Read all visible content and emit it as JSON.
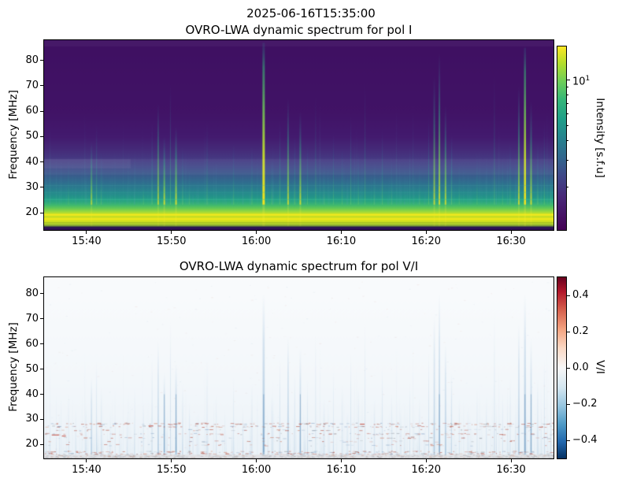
{
  "figure": {
    "suptitle": "2025-06-16T15:35:00",
    "background": "#ffffff"
  },
  "chart_data": [
    {
      "type": "heatmap",
      "title": "OVRO-LWA dynamic spectrum for pol I",
      "ylabel": "Frequency [MHz]",
      "x_range": [
        "15:35",
        "16:35"
      ],
      "x_ticks": [
        "15:40",
        "15:50",
        "16:00",
        "16:10",
        "16:20",
        "16:30"
      ],
      "y_range": [
        13.2,
        88
      ],
      "y_ticks": [
        20,
        30,
        40,
        50,
        60,
        70,
        80
      ],
      "grid": false,
      "colormap": "viridis",
      "colorbar": {
        "label": "Intensity [s.f.u]",
        "scale": "log",
        "vmin": 1.05,
        "vmax": 16.5,
        "major_tick_value": 10,
        "major_tick_label": "10",
        "major_tick_exp": "1",
        "minor_tick_values": [
          9,
          8,
          7,
          6,
          5,
          4,
          3,
          2
        ]
      },
      "background_spectrum": [
        [
          88,
          "#3f1062"
        ],
        [
          60,
          "#411366"
        ],
        [
          50,
          "#431a6e"
        ],
        [
          45,
          "#452a78"
        ],
        [
          41,
          "#453a83"
        ],
        [
          38,
          "#41498a"
        ],
        [
          35,
          "#3a5a8c"
        ],
        [
          32,
          "#306d8e"
        ],
        [
          30,
          "#2b7a8e"
        ],
        [
          28,
          "#26878c"
        ],
        [
          26,
          "#239688"
        ],
        [
          24.5,
          "#2aa57f"
        ],
        [
          23,
          "#3fb86e"
        ],
        [
          21.8,
          "#63c857"
        ],
        [
          20.5,
          "#97d83e"
        ],
        [
          19.4,
          "#d0e122"
        ],
        [
          18.4,
          "#c3dd24"
        ],
        [
          17.6,
          "#e8e41a"
        ],
        [
          16.8,
          "#d6e01e"
        ],
        [
          16,
          "#c2dc25"
        ],
        [
          15.2,
          "#a6cf35"
        ],
        [
          14.6,
          "#5f7a45"
        ],
        [
          14.2,
          "#34165e"
        ],
        [
          13.2,
          "#2b0d50"
        ]
      ],
      "rfi_lines": [
        [
          25.4,
          "rgba(60,200,160,0.50)",
          1
        ],
        [
          28.2,
          "rgba(55,180,155,0.30)",
          1
        ],
        [
          30.9,
          "rgba(70,160,170,0.25)",
          1
        ],
        [
          19.5,
          "rgba(248,235,30,0.90)",
          2
        ],
        [
          17.7,
          "rgba(250,238,28,0.80)",
          1
        ],
        [
          16.2,
          "rgba(140,160,40,0.70)",
          1
        ],
        [
          15.3,
          "rgba(120,140,45,0.60)",
          1
        ],
        [
          14.55,
          "rgba(40,18,80,0.90)",
          2
        ]
      ],
      "light_band_freq": [
        35,
        41.2
      ],
      "bursts": [
        [
          0.012,
          30,
          0.25,
          1
        ],
        [
          0.03,
          34,
          0.3,
          1
        ],
        [
          0.048,
          42,
          0.4,
          1
        ],
        [
          0.062,
          36,
          0.3,
          1
        ],
        [
          0.082,
          38,
          0.35,
          1
        ],
        [
          0.093,
          48,
          0.7,
          2
        ],
        [
          0.103,
          55,
          0.6,
          1
        ],
        [
          0.112,
          44,
          0.5,
          1
        ],
        [
          0.13,
          35,
          0.3,
          1
        ],
        [
          0.148,
          30,
          0.25,
          1
        ],
        [
          0.163,
          33,
          0.3,
          1
        ],
        [
          0.178,
          45,
          0.35,
          1
        ],
        [
          0.195,
          38,
          0.45,
          1
        ],
        [
          0.212,
          56,
          0.5,
          1
        ],
        [
          0.224,
          63,
          0.72,
          2
        ],
        [
          0.236,
          50,
          0.88,
          2
        ],
        [
          0.248,
          71,
          0.55,
          1
        ],
        [
          0.259,
          54,
          0.92,
          2
        ],
        [
          0.272,
          46,
          0.6,
          1
        ],
        [
          0.285,
          38,
          0.42,
          1
        ],
        [
          0.3,
          33,
          0.3,
          1
        ],
        [
          0.32,
          56,
          0.45,
          1
        ],
        [
          0.338,
          41,
          0.38,
          1
        ],
        [
          0.355,
          35,
          0.32,
          1
        ],
        [
          0.372,
          48,
          0.45,
          1
        ],
        [
          0.39,
          36,
          0.35,
          1
        ],
        [
          0.408,
          46,
          0.5,
          1
        ],
        [
          0.431,
          87,
          1.0,
          3
        ],
        [
          0.447,
          42,
          0.5,
          1
        ],
        [
          0.463,
          56,
          0.55,
          1
        ],
        [
          0.479,
          65,
          0.8,
          2
        ],
        [
          0.492,
          50,
          0.6,
          1
        ],
        [
          0.503,
          60,
          0.85,
          2
        ],
        [
          0.517,
          47,
          0.5,
          1
        ],
        [
          0.533,
          66,
          0.45,
          1
        ],
        [
          0.55,
          40,
          0.42,
          1
        ],
        [
          0.568,
          52,
          0.4,
          1
        ],
        [
          0.585,
          45,
          0.45,
          1
        ],
        [
          0.602,
          58,
          0.5,
          1
        ],
        [
          0.617,
          44,
          0.55,
          1
        ],
        [
          0.63,
          71,
          0.42,
          1
        ],
        [
          0.648,
          39,
          0.45,
          1
        ],
        [
          0.664,
          53,
          0.5,
          1
        ],
        [
          0.682,
          42,
          0.4,
          1
        ],
        [
          0.7,
          36,
          0.35,
          1
        ],
        [
          0.718,
          46,
          0.38,
          1
        ],
        [
          0.737,
          40,
          0.4,
          1
        ],
        [
          0.755,
          58,
          0.55,
          1
        ],
        [
          0.766,
          74,
          0.78,
          2
        ],
        [
          0.776,
          83,
          0.9,
          2
        ],
        [
          0.788,
          62,
          0.82,
          2
        ],
        [
          0.8,
          50,
          0.62,
          1
        ],
        [
          0.815,
          40,
          0.4,
          1
        ],
        [
          0.832,
          36,
          0.35,
          1
        ],
        [
          0.85,
          44,
          0.4,
          1
        ],
        [
          0.868,
          38,
          0.35,
          1
        ],
        [
          0.884,
          75,
          0.45,
          1
        ],
        [
          0.9,
          42,
          0.4,
          1
        ],
        [
          0.915,
          48,
          0.45,
          1
        ],
        [
          0.932,
          70,
          0.8,
          2
        ],
        [
          0.944,
          85,
          0.95,
          2.5
        ],
        [
          0.956,
          64,
          0.85,
          2
        ],
        [
          0.969,
          48,
          0.6,
          1
        ],
        [
          0.982,
          56,
          0.5,
          1
        ],
        [
          0.995,
          44,
          0.45,
          1
        ]
      ]
    },
    {
      "type": "heatmap",
      "title": "OVRO-LWA dynamic spectrum for pol V/I",
      "ylabel": "Frequency [MHz]",
      "x_range": [
        "15:35",
        "16:35"
      ],
      "x_ticks": [
        "15:40",
        "15:50",
        "16:00",
        "16:10",
        "16:20",
        "16:30"
      ],
      "y_range": [
        14.5,
        86.5
      ],
      "y_ticks": [
        20,
        30,
        40,
        50,
        60,
        70,
        80
      ],
      "grid": false,
      "colormap": "RdBu_r",
      "colorbar": {
        "label": "V/I",
        "scale": "linear",
        "vmin": -0.5,
        "vmax": 0.5,
        "ticks": [
          {
            "v": 0.4,
            "label": "0.4"
          },
          {
            "v": 0.2,
            "label": "0.2"
          },
          {
            "v": 0.0,
            "label": "0.0"
          },
          {
            "v": -0.2,
            "label": "−0.2"
          },
          {
            "v": -0.4,
            "label": "−0.4"
          }
        ]
      },
      "speckle_rows": [
        [
          28.4,
          170
        ],
        [
          27.3,
          130
        ],
        [
          25.9,
          60
        ],
        [
          24.3,
          100
        ],
        [
          22.8,
          55
        ],
        [
          21.4,
          45
        ],
        [
          19.9,
          40
        ],
        [
          17.2,
          160
        ],
        [
          16.4,
          190
        ],
        [
          15.4,
          170
        ]
      ],
      "red_marks": [
        [
          0.015,
          24.0,
          9
        ],
        [
          0.035,
          23.6,
          5
        ],
        [
          0.205,
          27.6,
          6
        ],
        [
          0.62,
          28.3,
          6
        ]
      ],
      "gray_band_top_freq": 16.0
    }
  ]
}
